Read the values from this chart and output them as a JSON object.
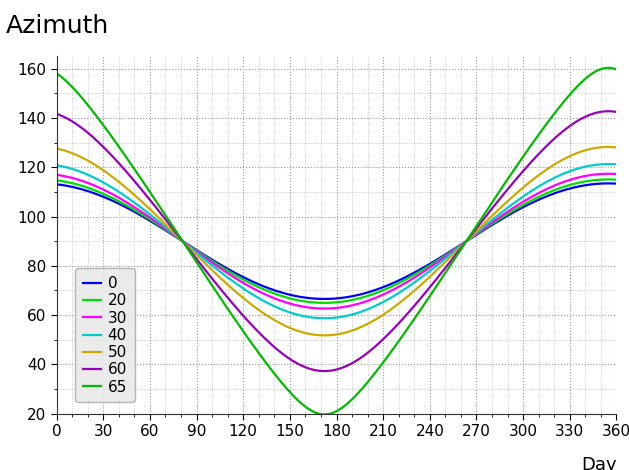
{
  "title": "Azimuth",
  "xlabel": "Day",
  "xlim": [
    0,
    360
  ],
  "ylim": [
    20,
    165
  ],
  "xticks": [
    0,
    30,
    60,
    90,
    120,
    150,
    180,
    210,
    240,
    270,
    300,
    330,
    360
  ],
  "yticks": [
    20,
    40,
    60,
    80,
    100,
    120,
    140,
    160
  ],
  "latitudes": [
    0,
    20,
    30,
    40,
    50,
    60,
    65
  ],
  "colors": {
    "0": "#0000ff",
    "20": "#00dd00",
    "30": "#ff00ff",
    "40": "#00cccc",
    "50": "#ccaa00",
    "60": "#9900bb",
    "65": "#00bb00"
  },
  "background_color": "#ffffff",
  "grid_color": "#999999",
  "title_fontsize": 18,
  "axis_label_fontsize": 13,
  "tick_fontsize": 11,
  "legend_fontsize": 11,
  "linewidth": 1.6
}
